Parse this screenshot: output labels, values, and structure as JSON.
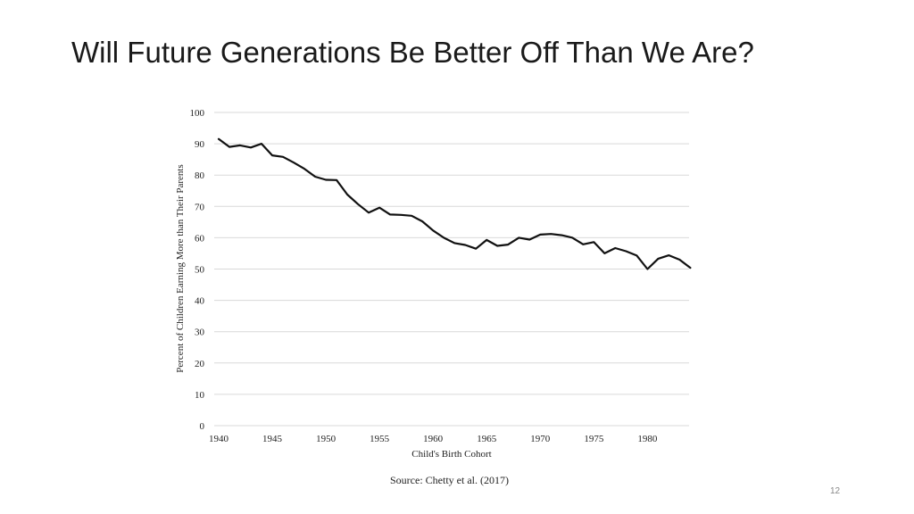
{
  "slide": {
    "title": "Will Future Generations Be Better Off Than We Are?",
    "source": "Source: Chetty et al. (2017)",
    "page_number": "12"
  },
  "chart_data": {
    "type": "line",
    "xlabel": "Child's Birth Cohort",
    "ylabel": "Percent of Children Earning More than Their Parents",
    "xlim": [
      1940,
      1985
    ],
    "ylim": [
      0,
      100
    ],
    "xticks": [
      1940,
      1945,
      1950,
      1955,
      1960,
      1965,
      1970,
      1975,
      1980
    ],
    "yticks": [
      0,
      10,
      20,
      30,
      40,
      50,
      60,
      70,
      80,
      90,
      100
    ],
    "grid": "horizontal",
    "line_color": "#111111",
    "series": [
      {
        "x": [
          1940,
          1941,
          1942,
          1943,
          1944,
          1945,
          1946,
          1947,
          1948,
          1949,
          1950,
          1951,
          1952,
          1953,
          1954,
          1955,
          1956,
          1957,
          1958,
          1959,
          1960,
          1961,
          1962,
          1963,
          1964,
          1965,
          1966,
          1967,
          1968,
          1969,
          1970,
          1971,
          1972,
          1973,
          1974,
          1975,
          1976,
          1977,
          1978,
          1979,
          1980,
          1981,
          1982,
          1983,
          1984
        ],
        "y": [
          91.5,
          89.0,
          89.5,
          88.8,
          90.0,
          86.3,
          85.8,
          84.0,
          82.0,
          79.5,
          78.5,
          78.4,
          73.8,
          70.7,
          68.0,
          69.6,
          67.4,
          67.3,
          67.0,
          65.2,
          62.3,
          60.0,
          58.3,
          57.7,
          56.5,
          59.3,
          57.4,
          57.8,
          60.0,
          59.4,
          61.0,
          61.2,
          60.8,
          60.0,
          57.9,
          58.6,
          55.0,
          56.7,
          55.7,
          54.3,
          50.0,
          53.3,
          54.4,
          53.0,
          50.4
        ]
      }
    ]
  }
}
